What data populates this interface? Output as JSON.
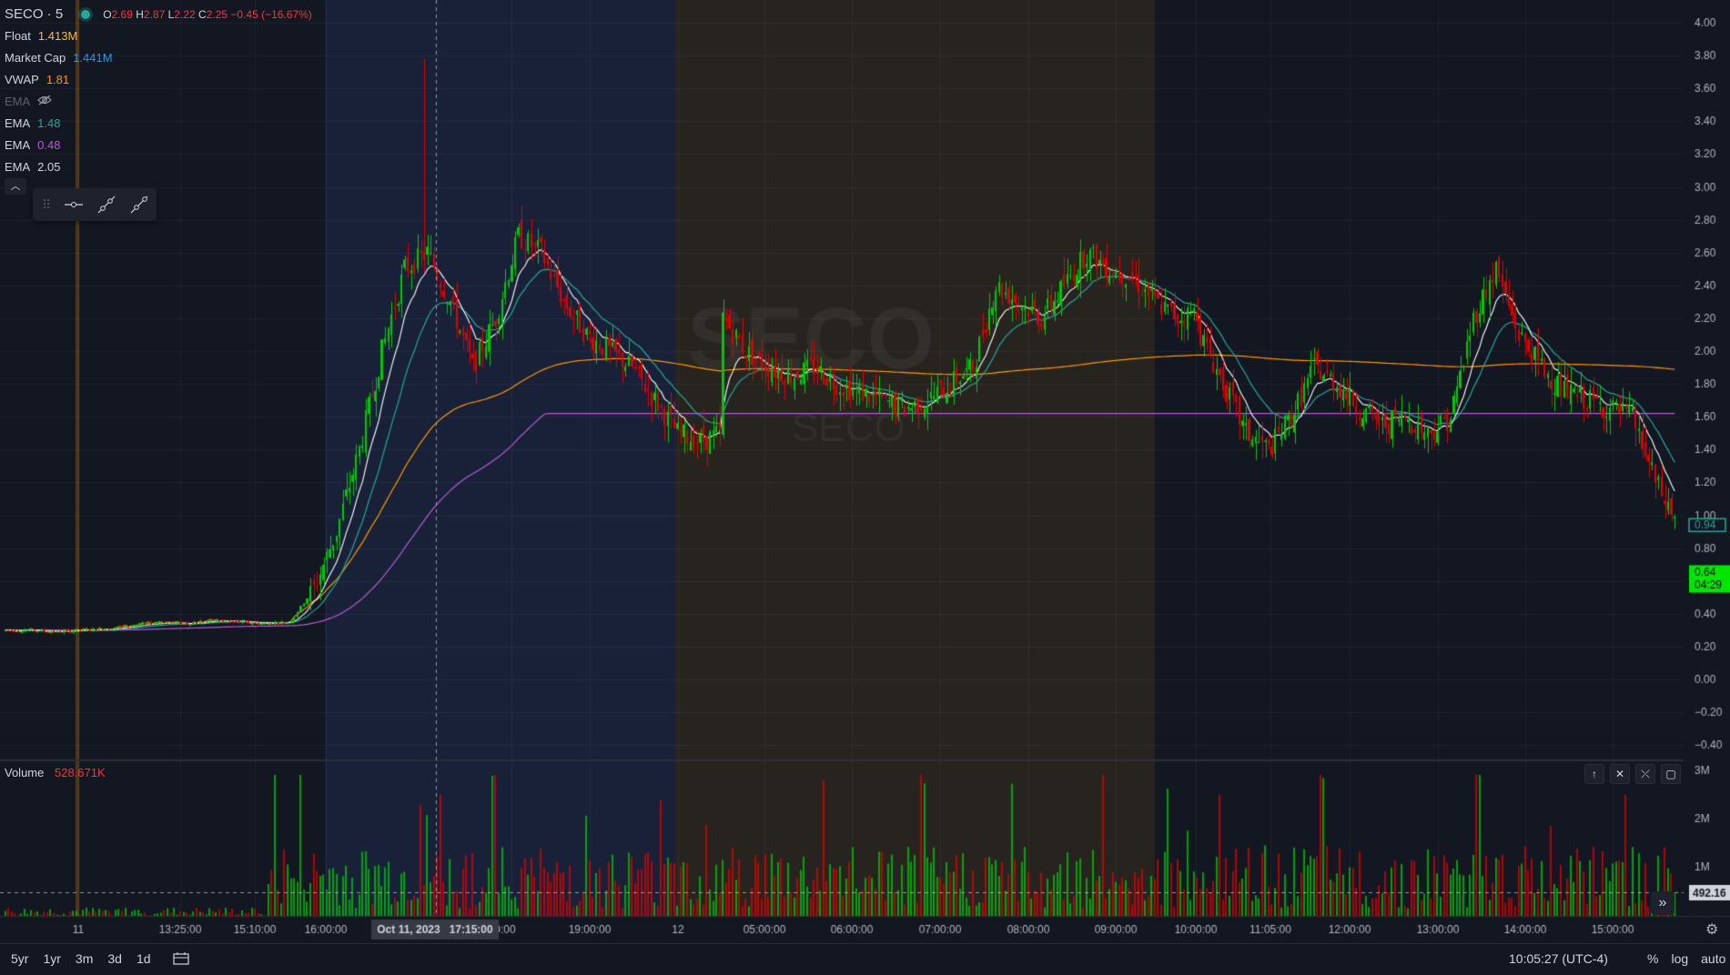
{
  "header": {
    "symbol": "SECO · 5",
    "ohlc": {
      "o": "2.69",
      "h": "2.87",
      "l": "2.22",
      "c": "2.25",
      "change": "−0.45 (−16.67%)"
    }
  },
  "indicators": [
    {
      "name": "Float",
      "value": "1.413M",
      "color": "#f5c518"
    },
    {
      "name": "Market Cap",
      "value": "1.441M",
      "color": "#2196f3"
    },
    {
      "name": "VWAP",
      "value": "1.81",
      "color": "#ff9800"
    },
    {
      "name": "EMA",
      "value": "",
      "color": "#5d606b",
      "hidden": true
    },
    {
      "name": "EMA",
      "value": "1.48",
      "color": "#26a69a"
    },
    {
      "name": "EMA",
      "value": "0.48",
      "color": "#c157d9"
    },
    {
      "name": "EMA",
      "value": "2.05",
      "color": "#d1d4dc"
    }
  ],
  "watermark": {
    "big": "SECO",
    "small": "SECO"
  },
  "volume": {
    "label": "Volume",
    "value": "528.671K"
  },
  "price_axis": {
    "ticks": [
      "4.00",
      "3.80",
      "3.60",
      "3.40",
      "3.20",
      "3.00",
      "2.80",
      "2.60",
      "2.40",
      "2.20",
      "2.00",
      "1.80",
      "1.60",
      "1.40",
      "1.20",
      "1.00",
      "0.80",
      "0.60",
      "0.40",
      "0.20",
      "0.00",
      "−0.20",
      "−0.40"
    ],
    "last_price": "0.94",
    "last_price_color": "#26a69a",
    "countdown": {
      "price": "0.64",
      "time": "04:29",
      "color": "#00e600"
    }
  },
  "volume_axis": {
    "ticks": [
      "3M",
      "2M",
      "1M"
    ],
    "current": "492.16"
  },
  "time_axis": {
    "labels": [
      "11",
      "13:25:00",
      "15:10:00",
      "16:00:00",
      "0:00",
      "19:00:00",
      "12",
      "05:00:00",
      "06:00:00",
      "07:00:00",
      "08:00:00",
      "09:00:00",
      "10:00:00",
      "11:05:00",
      "12:00:00",
      "13:00:00",
      "14:00:00",
      "15:00:00"
    ],
    "crosshair_label": "Oct 11, 2023   17:15:00"
  },
  "bottom_bar": {
    "ranges": [
      "5yr",
      "1yr",
      "3m",
      "3d",
      "1d"
    ],
    "clock": "10:05:27 (UTC-4)",
    "options": [
      "%",
      "log",
      "auto"
    ]
  },
  "colors": {
    "up": "#00c805",
    "down": "#e00000",
    "vwap": "#ff9800",
    "ema_teal": "#26a69a",
    "ema_purple": "#b85ad6",
    "ema_white": "#ffffff",
    "premarket_shade": "#1e2a4a",
    "afterhours_shade": "#2a2620"
  },
  "chart_data": {
    "type": "candlestick",
    "ylim": [
      -0.4,
      4.0
    ],
    "sessions": [
      {
        "segment": "Oct 11 regular",
        "close_trend": [
          0.3,
          0.3,
          0.29,
          0.3,
          0.31,
          0.33,
          0.35,
          0.34,
          0.36,
          0.35,
          0.34,
          0.35
        ]
      },
      {
        "segment": "Oct 11 after-hours",
        "close_trend": [
          0.36,
          0.55,
          0.9,
          1.4,
          2.0,
          2.5,
          2.6,
          2.3,
          1.9,
          2.2,
          2.7,
          2.6,
          2.3,
          2.1,
          2.0,
          1.9,
          1.7,
          1.5,
          1.45,
          1.5
        ]
      },
      {
        "segment": "Oct 12 pre-market",
        "close_trend": [
          2.2,
          2.0,
          1.9,
          1.85,
          1.9,
          1.8,
          1.75,
          1.7,
          1.65,
          1.7,
          1.8,
          1.9,
          2.4,
          2.3,
          2.2,
          2.4,
          2.6,
          2.5,
          2.45,
          2.3,
          2.2,
          2.25
        ]
      },
      {
        "segment": "Oct 12 regular",
        "close_trend": [
          2.1,
          1.8,
          1.5,
          1.4,
          1.6,
          1.9,
          1.8,
          1.65,
          1.55,
          1.6,
          1.5,
          1.6,
          2.2,
          2.5,
          2.1,
          1.9,
          1.75,
          1.7,
          1.65,
          1.6,
          1.2,
          0.94
        ]
      }
    ]
  }
}
